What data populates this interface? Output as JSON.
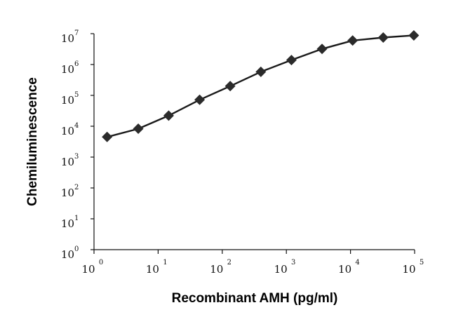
{
  "chart_data": {
    "type": "line",
    "title": "",
    "xlabel": "Recombinant AMH (pg/ml)",
    "ylabel": "Chemiluminescence",
    "xscale": "log",
    "yscale": "log",
    "xlim": [
      1,
      100000
    ],
    "ylim": [
      1,
      10000000
    ],
    "x_ticks": [
      {
        "base": "10",
        "exp": "0"
      },
      {
        "base": "10",
        "exp": "1"
      },
      {
        "base": "10",
        "exp": "2"
      },
      {
        "base": "10",
        "exp": "3"
      },
      {
        "base": "10",
        "exp": "4"
      },
      {
        "base": "10",
        "exp": "5"
      }
    ],
    "y_ticks": [
      {
        "base": "10",
        "exp": "0"
      },
      {
        "base": "10",
        "exp": "1"
      },
      {
        "base": "10",
        "exp": "2"
      },
      {
        "base": "10",
        "exp": "3"
      },
      {
        "base": "10",
        "exp": "4"
      },
      {
        "base": "10",
        "exp": "5"
      },
      {
        "base": "10",
        "exp": "6"
      },
      {
        "base": "10",
        "exp": "7"
      }
    ],
    "grid": false,
    "legend": "none",
    "marker": "diamond",
    "line_color": "#1a1a1a",
    "marker_color": "#2b2b2b",
    "series": [
      {
        "x": [
          1.6,
          4.9,
          14.6,
          44.4,
          133,
          400,
          1200,
          3600,
          10800,
          32400,
          97200
        ],
        "y": [
          4500,
          8300,
          22000,
          72000,
          200000,
          580000,
          1400000,
          3200000,
          6000000,
          7500000,
          8800000
        ]
      }
    ]
  }
}
